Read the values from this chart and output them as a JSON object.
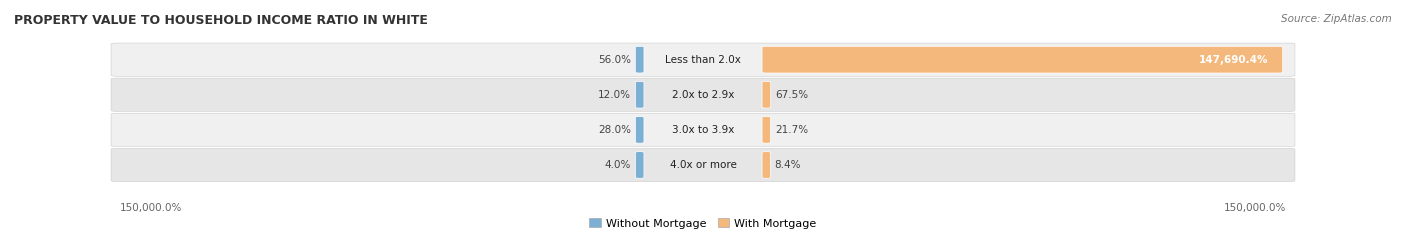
{
  "title": "PROPERTY VALUE TO HOUSEHOLD INCOME RATIO IN WHITE",
  "source": "Source: ZipAtlas.com",
  "categories": [
    "Less than 2.0x",
    "2.0x to 2.9x",
    "3.0x to 3.9x",
    "4.0x or more"
  ],
  "without_mortgage": [
    56.0,
    12.0,
    28.0,
    4.0
  ],
  "with_mortgage": [
    147690.4,
    67.5,
    21.7,
    8.4
  ],
  "without_mortgage_color": "#7bafd4",
  "with_mortgage_color": "#f5b87c",
  "row_bg_even": "#f0f0f0",
  "row_bg_odd": "#e6e6e6",
  "axis_label": "150,000.0%",
  "legend_without": "Without Mortgage",
  "legend_with": "With Mortgage",
  "max_scale": 150000.0,
  "figsize": [
    14.06,
    2.34
  ],
  "dpi": 100,
  "title_color": "#333333",
  "source_color": "#777777",
  "label_color": "#444444",
  "value_label_color_inside": "#ffffff",
  "footer_color": "#666666"
}
